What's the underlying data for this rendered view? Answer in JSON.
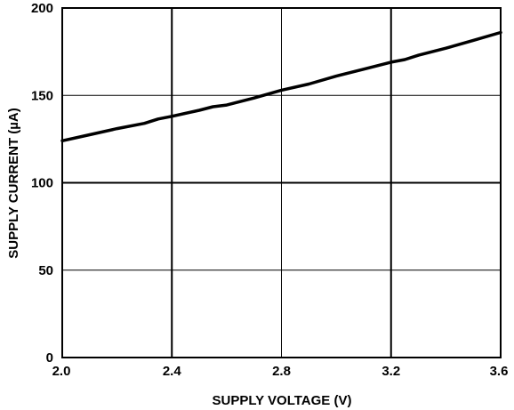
{
  "chart_data": {
    "type": "line",
    "title": "",
    "xlabel": "SUPPLY VOLTAGE (V)",
    "ylabel": "SUPPLY CURRENT (µA)",
    "xlim": [
      2.0,
      3.6
    ],
    "ylim": [
      0,
      200
    ],
    "x_ticks": [
      "2.0",
      "2.4",
      "2.8",
      "3.2",
      "3.6"
    ],
    "y_ticks": [
      "0",
      "50",
      "100",
      "150",
      "200"
    ],
    "grid": true,
    "colors": {
      "line": "#000000",
      "grid": "#000000",
      "background": "#ffffff"
    },
    "series": [
      {
        "x": [
          2.0,
          2.1,
          2.2,
          2.3,
          2.35,
          2.4,
          2.5,
          2.55,
          2.6,
          2.7,
          2.8,
          2.9,
          3.0,
          3.1,
          3.2,
          3.25,
          3.3,
          3.4,
          3.5,
          3.6
        ],
        "y": [
          124,
          127.5,
          131,
          134,
          136.5,
          138,
          141.5,
          143.5,
          144.5,
          148.5,
          153,
          156.5,
          161,
          165,
          169,
          170.5,
          173,
          177,
          181.5,
          186
        ]
      }
    ]
  }
}
